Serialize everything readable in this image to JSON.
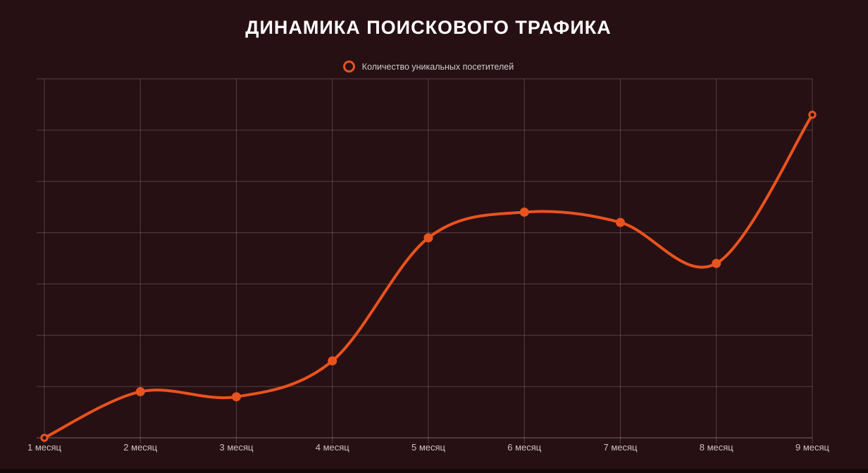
{
  "page": {
    "background": "#271014",
    "bottom_strip_color": "#100a0b"
  },
  "header": {
    "title": "ДИНАМИКА ПОИСКОВОГО ТРАФИКА"
  },
  "legend": {
    "items": [
      {
        "label": "Количество уникальных посетителей",
        "marker": "open-circle",
        "color": "#e9531d"
      }
    ]
  },
  "chart_data": {
    "type": "line",
    "title": "ДИНАМИКА ПОИСКОВОГО ТРАФИКА",
    "categories": [
      "1 месяц",
      "2 месяц",
      "3 месяц",
      "4 месяц",
      "5 месяц",
      "6 месяц",
      "7 месяц",
      "8 месяц",
      "9 месяц"
    ],
    "series": [
      {
        "name": "Количество уникальных посетителей",
        "color": "#e9531d",
        "values": [
          0,
          0.9,
          0.8,
          1.5,
          3.9,
          4.4,
          4.2,
          3.4,
          6.3
        ]
      }
    ],
    "xlabel": "",
    "ylabel": "",
    "ylim": [
      0,
      7
    ],
    "y_tick_labels_visible": false,
    "grid": true,
    "legend_position": "top-center",
    "line_smoothing": "spline",
    "open_markers_at": [
      0,
      8
    ],
    "note": "y-axis shows no tick labels; values estimated in horizontal-gridline units (0–7 from bottom axis to top gridline)"
  },
  "colors": {
    "line": "#e9531d",
    "grid": "rgba(240,228,228,0.22)",
    "axis": "rgba(240,228,228,0.4)",
    "label": "#c9c2c2",
    "legend_text": "#cccccc",
    "title": "#ffffff",
    "background": "#271014"
  }
}
